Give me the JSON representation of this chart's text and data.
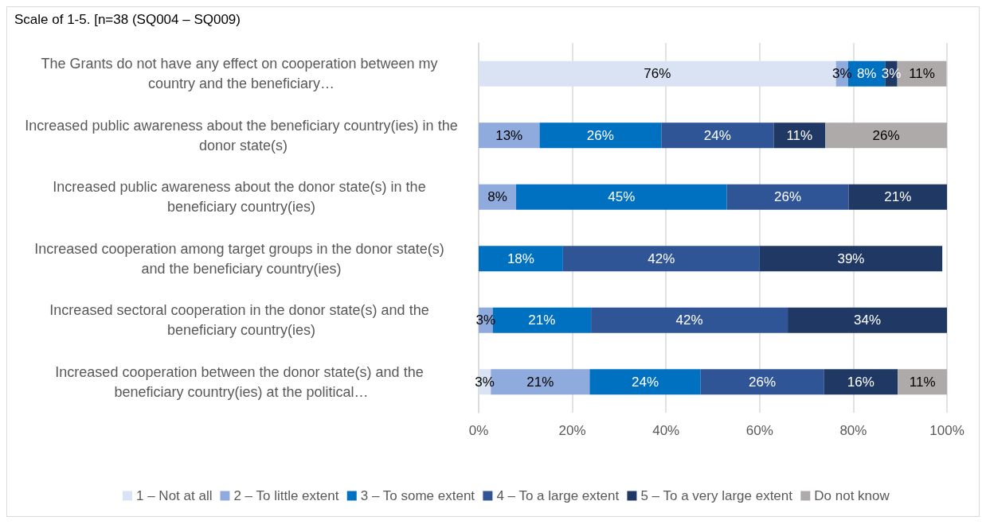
{
  "chart_data": {
    "type": "bar",
    "orientation": "horizontal",
    "stacked": true,
    "title": "Scale of 1-5. [n=38 (SQ004 – SQ009)",
    "categories": [
      "The Grants do not have any effect on cooperation between my country and the beneficiary…",
      "Increased public awareness about the beneficiary country(ies) in the donor state(s)",
      "Increased public awareness about the donor state(s) in the beneficiary country(ies)",
      "Increased cooperation among target groups in the donor state(s) and the beneficiary country(ies)",
      "Increased sectoral cooperation in the donor state(s) and the beneficiary country(ies)",
      "Increased cooperation between the donor state(s) and the beneficiary country(ies) at the political…"
    ],
    "series": [
      {
        "name": "1 – Not at all",
        "color": "#dae3f3",
        "values": [
          76.3,
          null,
          null,
          null,
          null,
          2.6
        ],
        "value_labels": [
          "76%",
          null,
          null,
          null,
          null,
          "3%"
        ]
      },
      {
        "name": "2 – To little extent",
        "color": "#8faadc",
        "values": [
          2.6,
          13,
          8,
          null,
          3,
          21.1
        ],
        "value_labels": [
          "3%",
          "13%",
          "8%",
          null,
          "3%",
          "21%"
        ]
      },
      {
        "name": "3 – To some extent",
        "color": "#0070c0",
        "values": [
          7.9,
          26,
          45,
          18,
          21,
          23.7
        ],
        "value_labels": [
          "8%",
          "26%",
          "45%",
          "18%",
          "21%",
          "24%"
        ]
      },
      {
        "name": "4 – To a large extent",
        "color": "#2f5597",
        "values": [
          null,
          24,
          26,
          42,
          42,
          26.3
        ],
        "value_labels": [
          null,
          "24%",
          "26%",
          "42%",
          "42%",
          "26%"
        ]
      },
      {
        "name": "5 – To a very large extent",
        "color": "#203864",
        "values": [
          2.6,
          11,
          21,
          39,
          34,
          15.8
        ],
        "value_labels": [
          "3%",
          "11%",
          "21%",
          "39%",
          "34%",
          "16%"
        ]
      },
      {
        "name": "Do not know",
        "color": "#aeaaaa",
        "values": [
          10.5,
          26,
          null,
          null,
          null,
          10.5
        ],
        "value_labels": [
          "11%",
          "26%",
          null,
          null,
          null,
          "11%"
        ]
      }
    ],
    "xlim": [
      0,
      100
    ],
    "xticks": [
      {
        "value": 0,
        "label": "0%"
      },
      {
        "value": 20,
        "label": "20%"
      },
      {
        "value": 40,
        "label": "40%"
      },
      {
        "value": 60,
        "label": "60%"
      },
      {
        "value": 80,
        "label": "80%"
      },
      {
        "value": 100,
        "label": "100%"
      }
    ],
    "grid": "x",
    "legend": "bottom"
  }
}
